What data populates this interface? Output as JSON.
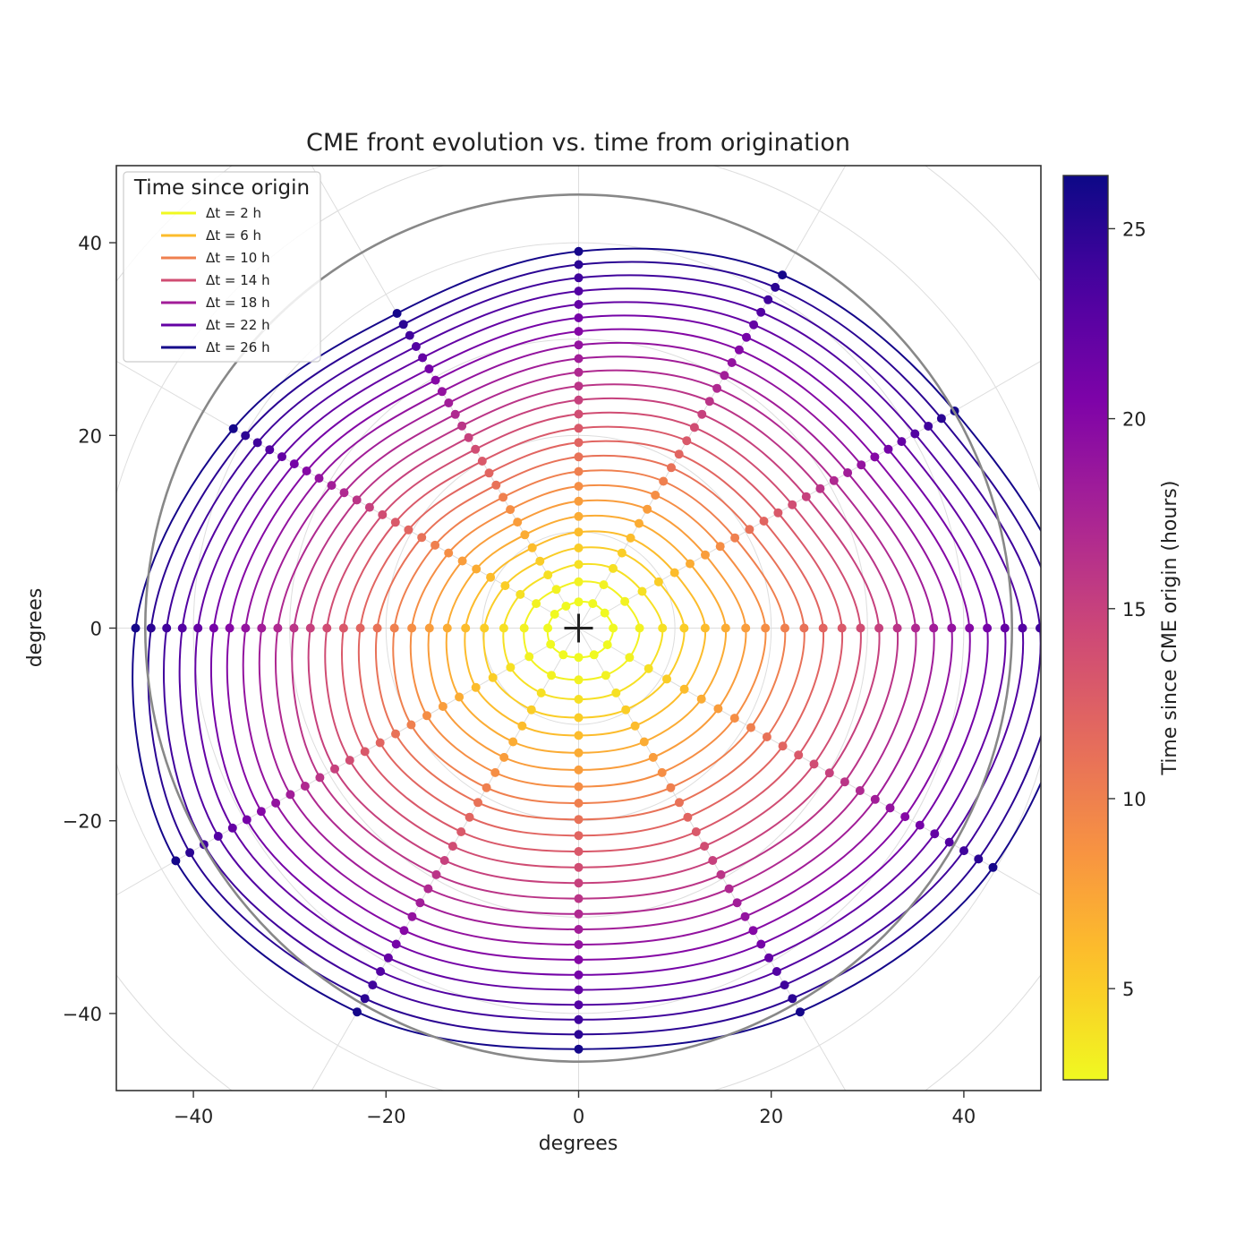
{
  "chart_data": {
    "type": "line",
    "title": "CME front evolution vs. time from origination",
    "xlabel": "degrees",
    "ylabel": "degrees",
    "xlim": [
      -48,
      48
    ],
    "ylim": [
      -48,
      48
    ],
    "xticks": [
      -40,
      -20,
      0,
      20,
      40
    ],
    "yticks": [
      -40,
      -20,
      0,
      20,
      40
    ],
    "grid": "polar",
    "limb_radius": 45,
    "origin_marker": "+",
    "legend": {
      "title": "Time since origin",
      "placement": "top-left",
      "entries": [
        {
          "label": "Δt = 2 h",
          "t": 2
        },
        {
          "label": "Δt = 6 h",
          "t": 6
        },
        {
          "label": "Δt = 10 h",
          "t": 10
        },
        {
          "label": "Δt = 14 h",
          "t": 14
        },
        {
          "label": "Δt = 18 h",
          "t": 18
        },
        {
          "label": "Δt = 22 h",
          "t": 22
        },
        {
          "label": "Δt = 26 h",
          "t": 26
        }
      ]
    },
    "colorbar": {
      "label": "Time since CME origin (hours)",
      "range": [
        2.6,
        26.4
      ],
      "ticks": [
        5,
        10,
        15,
        20,
        25
      ],
      "colormap": "plasma"
    },
    "fronts": {
      "t_start": 2,
      "t_end": 26,
      "step": 1,
      "angles_deg": [
        0,
        30,
        60,
        90,
        120,
        150,
        180,
        210,
        240,
        270,
        300,
        330
      ],
      "radius_profile": {
        "r0": 3.2,
        "r1": 46,
        "direction_factors": [
          1.12,
          0.98,
          0.92,
          0.85,
          0.82,
          0.9,
          1.0,
          1.05,
          1.0,
          0.95,
          1.0,
          1.08
        ]
      }
    },
    "colors": {
      "axes": "#333333",
      "grid": "#dddddd",
      "limb": "#888888",
      "marker": "#222222"
    }
  }
}
